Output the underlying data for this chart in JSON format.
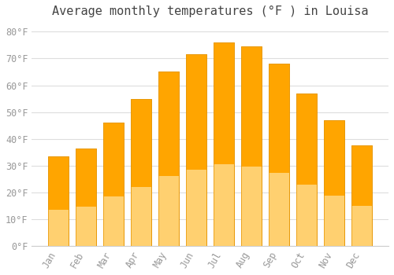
{
  "title": "Average monthly temperatures (°F ) in Louisa",
  "months": [
    "Jan",
    "Feb",
    "Mar",
    "Apr",
    "May",
    "Jun",
    "Jul",
    "Aug",
    "Sep",
    "Oct",
    "Nov",
    "Dec"
  ],
  "values": [
    33.5,
    36.5,
    46,
    55,
    65,
    71.5,
    76,
    74.5,
    68,
    57,
    47,
    37.5
  ],
  "bar_color_top": "#FFA500",
  "bar_color_bottom": "#FFD070",
  "bar_edge_color": "#E69500",
  "background_color": "#FFFFFF",
  "plot_bg_color": "#FFFFFF",
  "grid_color": "#DDDDDD",
  "yticks": [
    0,
    10,
    20,
    30,
    40,
    50,
    60,
    70,
    80
  ],
  "ylim": [
    0,
    83
  ],
  "title_fontsize": 11,
  "tick_fontsize": 8.5,
  "tick_color": "#999999",
  "font_family": "monospace"
}
